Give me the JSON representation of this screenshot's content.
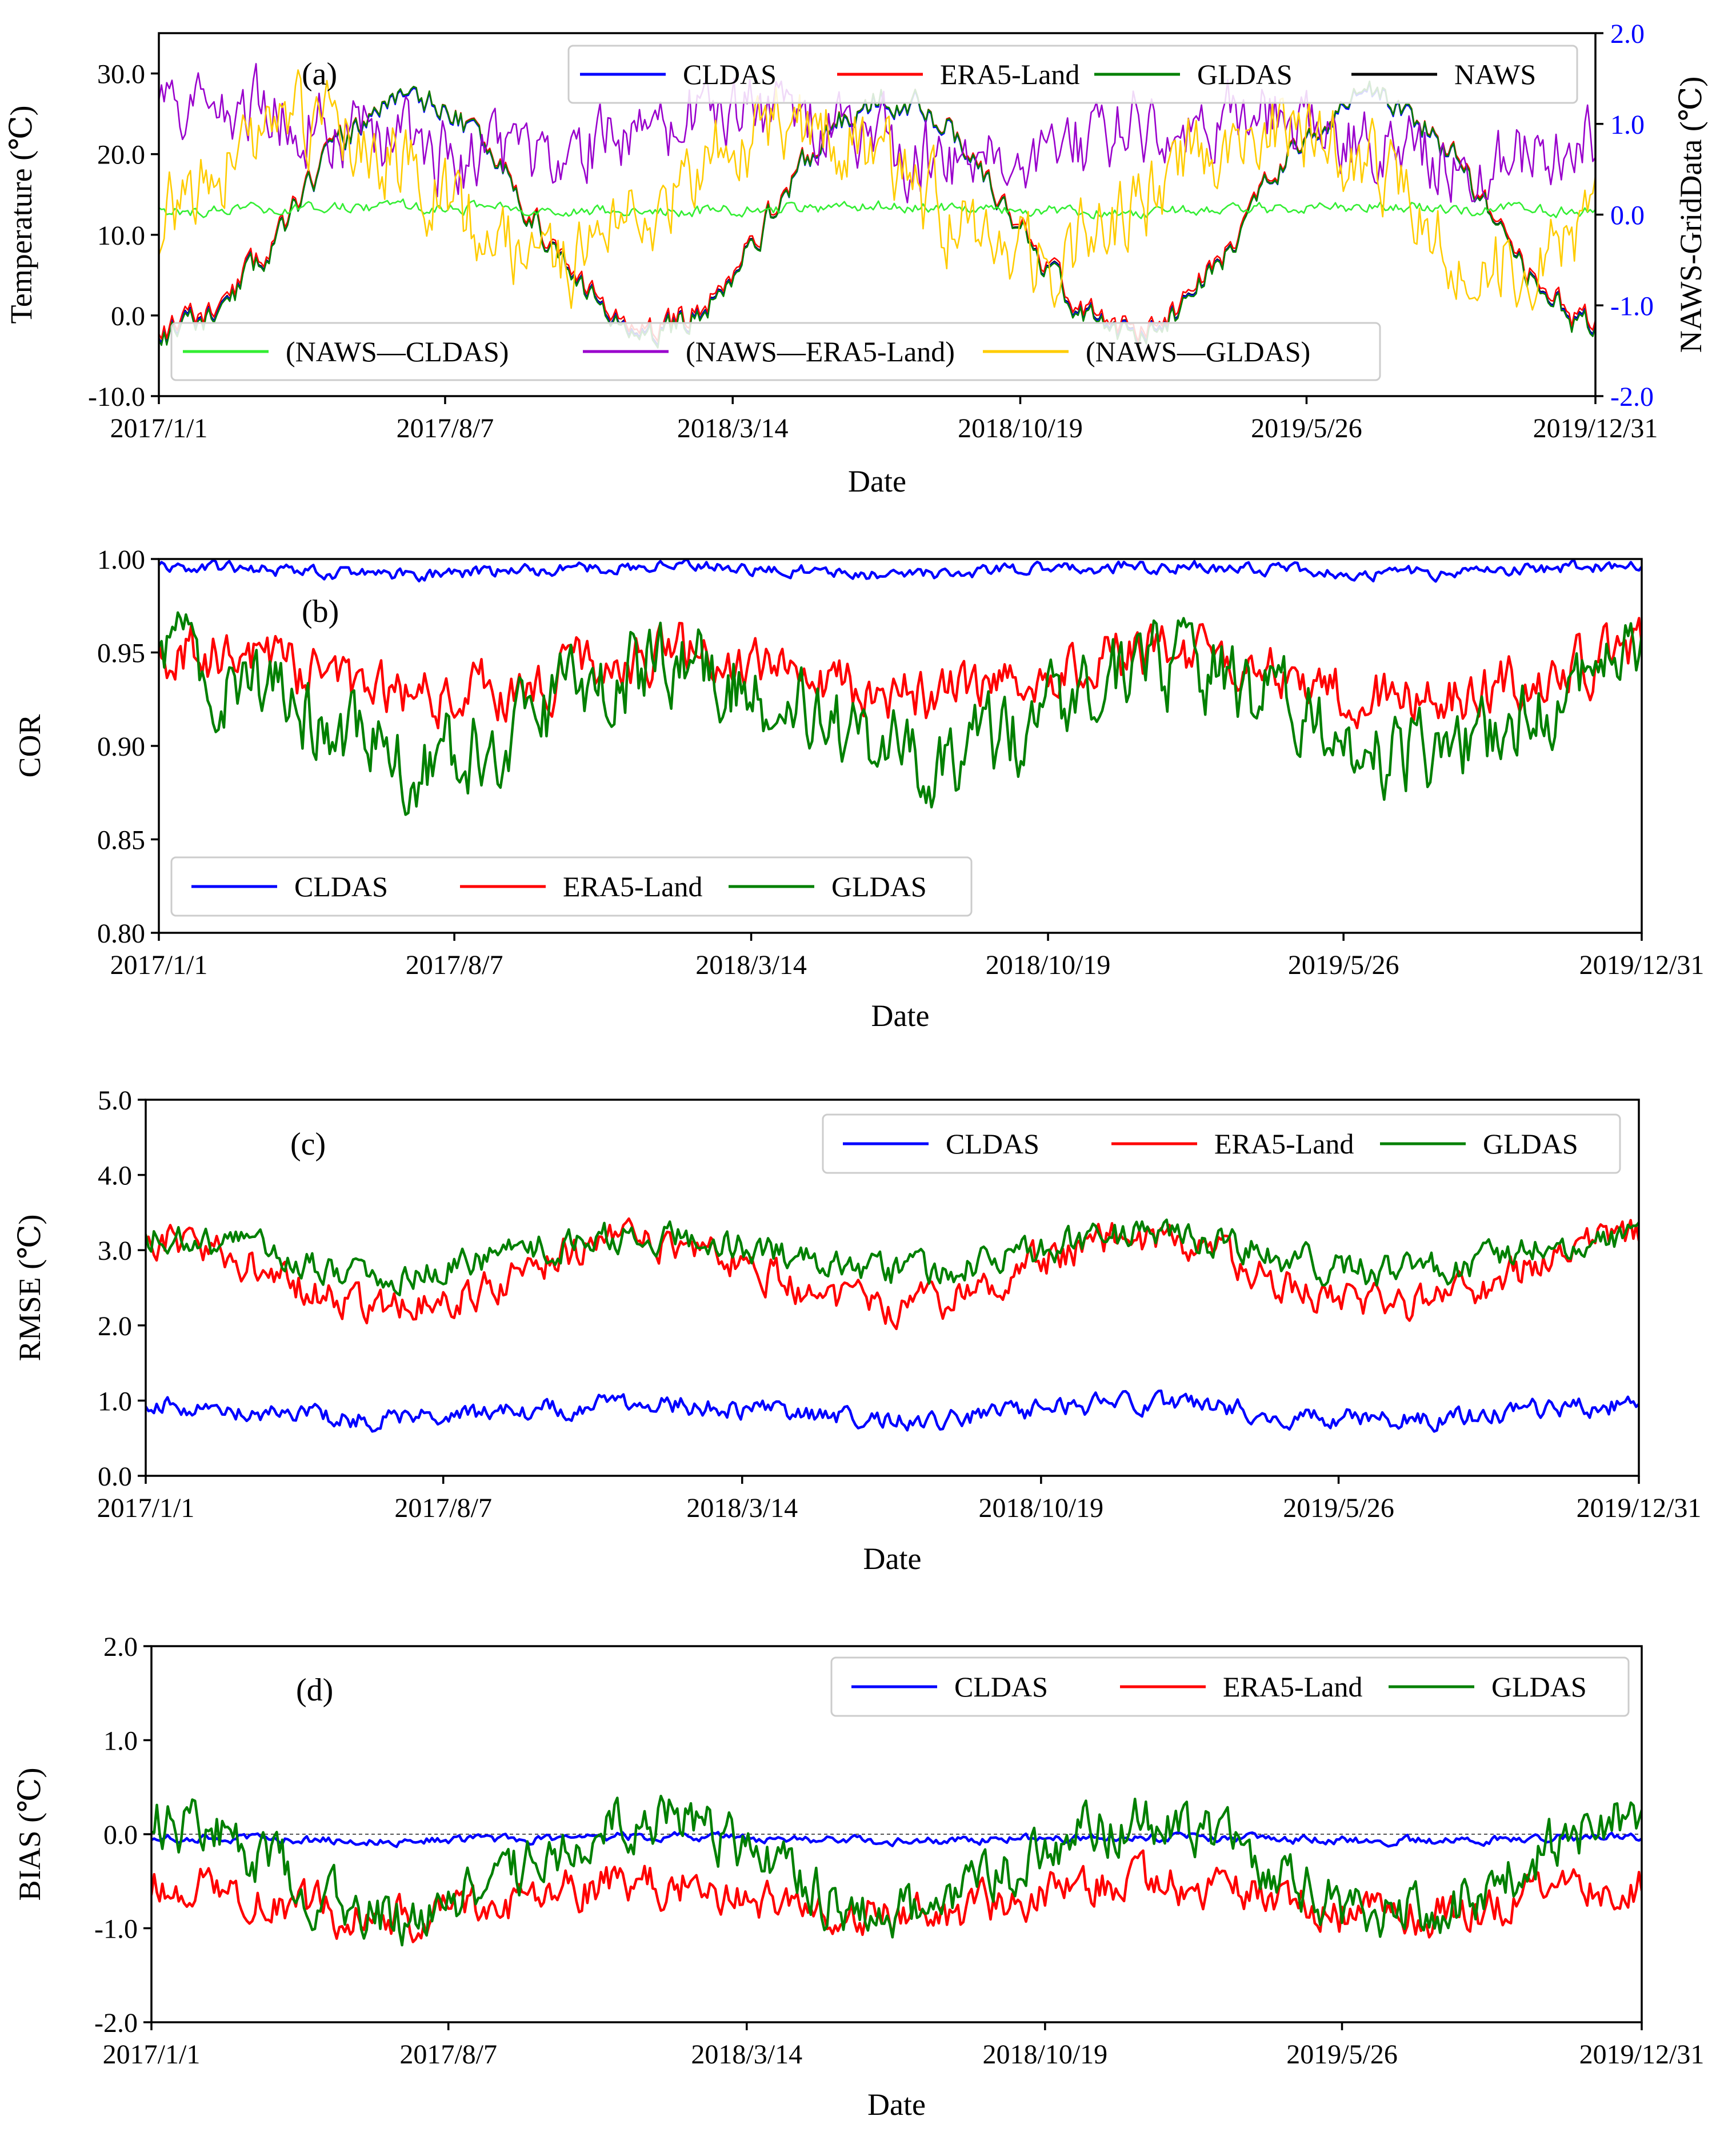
{
  "colors": {
    "CLDAS": "#0000ff",
    "ERA5-Land": "#ff0000",
    "GLDAS": "#008000",
    "NAWS": "#000000",
    "diff_CLDAS": "#33ee33",
    "diff_ERA5": "#9900cc",
    "diff_GLDAS": "#ffcc00",
    "right_axis": "#0000ff"
  },
  "chart_data": [
    {
      "id": "a",
      "type": "line",
      "panel_label": "(a)",
      "xlabel": "Date",
      "ylabel": "Temperature (℃)",
      "y2label": "NAWS-GridData (℃)",
      "x_range": [
        0,
        1094
      ],
      "x_ticks": [
        {
          "day": 0,
          "label": "2017/1/1"
        },
        {
          "day": 218,
          "label": "2017/8/7"
        },
        {
          "day": 437,
          "label": "2018/3/14"
        },
        {
          "day": 656,
          "label": "2018/10/19"
        },
        {
          "day": 874,
          "label": "2019/5/26"
        },
        {
          "day": 1094,
          "label": "2019/12/31"
        }
      ],
      "ylim": [
        -10,
        35
      ],
      "y_ticks": [
        {
          "value": -10,
          "label": "-10.0"
        },
        {
          "value": 0,
          "label": "0.0"
        },
        {
          "value": 10,
          "label": "10.0"
        },
        {
          "value": 20,
          "label": "20.0"
        },
        {
          "value": 30,
          "label": "30.0"
        }
      ],
      "y2lim": [
        -2,
        2
      ],
      "y2_ticks": [
        {
          "value": -2,
          "label": "-2.0"
        },
        {
          "value": -1,
          "label": "-1.0"
        },
        {
          "value": 0,
          "label": "0.0"
        },
        {
          "value": 1,
          "label": "1.0"
        },
        {
          "value": 2,
          "label": "2.0"
        }
      ],
      "legend_top": [
        "CLDAS",
        "ERA5-Land",
        "GLDAS",
        "NAWS"
      ],
      "legend_bottom": [
        "(NAWS—CLDAS)",
        "(NAWS—ERA5-Land)",
        "(NAWS—GLDAS)"
      ],
      "series": [
        {
          "name": "NAWS",
          "axis": "left",
          "approx": true,
          "mean": 12.5,
          "amp": 14.5,
          "peak_day": 192,
          "noise": 1.4,
          "seed": 11
        },
        {
          "name": "CLDAS",
          "axis": "left",
          "approx": true,
          "mean": 12.4,
          "amp": 14.5,
          "peak_day": 192,
          "noise": 1.4,
          "seed": 11
        },
        {
          "name": "ERA5-Land",
          "axis": "left",
          "approx": true,
          "mean": 12.8,
          "amp": 14.3,
          "peak_day": 192,
          "noise": 1.4,
          "seed": 11
        },
        {
          "name": "GLDAS",
          "axis": "left",
          "approx": true,
          "mean": 12.4,
          "amp": 14.7,
          "peak_day": 192,
          "noise": 1.4,
          "seed": 11
        },
        {
          "name": "(NAWS—CLDAS)",
          "axis": "right",
          "approx": true,
          "mean": 0.06,
          "amp": 0.03,
          "peak_day": 192,
          "noise": 0.05,
          "seed": 21
        },
        {
          "name": "(NAWS—ERA5-Land)",
          "axis": "right",
          "approx": true,
          "mean": 0.85,
          "amp": 0.25,
          "peak_day": 75,
          "noise": 0.32,
          "seed": 22
        },
        {
          "name": "(NAWS—GLDAS)",
          "axis": "right",
          "approx": true,
          "mean": 0.25,
          "amp": 0.75,
          "peak_day": 120,
          "noise": 0.35,
          "seed": 23
        }
      ]
    },
    {
      "id": "b",
      "type": "line",
      "panel_label": "(b)",
      "xlabel": "Date",
      "ylabel": "COR",
      "x_range": [
        0,
        1094
      ],
      "x_ticks": [
        {
          "day": 0,
          "label": "2017/1/1"
        },
        {
          "day": 218,
          "label": "2017/8/7"
        },
        {
          "day": 437,
          "label": "2018/3/14"
        },
        {
          "day": 656,
          "label": "2018/10/19"
        },
        {
          "day": 874,
          "label": "2019/5/26"
        },
        {
          "day": 1094,
          "label": "2019/12/31"
        }
      ],
      "ylim": [
        0.8,
        1.0
      ],
      "y_ticks": [
        {
          "value": 0.8,
          "label": "0.80"
        },
        {
          "value": 0.85,
          "label": "0.85"
        },
        {
          "value": 0.9,
          "label": "0.90"
        },
        {
          "value": 0.95,
          "label": "0.95"
        },
        {
          "value": 1.0,
          "label": "1.00"
        }
      ],
      "legend": [
        "CLDAS",
        "ERA5-Land",
        "GLDAS"
      ],
      "series": [
        {
          "name": "CLDAS",
          "approx": true,
          "mean": 0.994,
          "amp": 0.002,
          "peak_day": 0,
          "noise": 0.0025,
          "seed": 31
        },
        {
          "name": "ERA5-Land",
          "approx": true,
          "mean": 0.938,
          "amp": 0.012,
          "peak_day": 15,
          "noise": 0.011,
          "seed": 32
        },
        {
          "name": "GLDAS",
          "approx": true,
          "mean": 0.918,
          "amp": 0.025,
          "peak_day": 15,
          "noise": 0.017,
          "seed": 33
        }
      ]
    },
    {
      "id": "c",
      "type": "line",
      "panel_label": "(c)",
      "xlabel": "Date",
      "ylabel": "RMSE (℃)",
      "x_range": [
        0,
        1094
      ],
      "x_ticks": [
        {
          "day": 0,
          "label": "2017/1/1"
        },
        {
          "day": 218,
          "label": "2017/8/7"
        },
        {
          "day": 437,
          "label": "2018/3/14"
        },
        {
          "day": 656,
          "label": "2018/10/19"
        },
        {
          "day": 874,
          "label": "2019/5/26"
        },
        {
          "day": 1094,
          "label": "2019/12/31"
        }
      ],
      "ylim": [
        0,
        5
      ],
      "y_ticks": [
        {
          "value": 0,
          "label": "0.0"
        },
        {
          "value": 1,
          "label": "1.0"
        },
        {
          "value": 2,
          "label": "2.0"
        },
        {
          "value": 3,
          "label": "3.0"
        },
        {
          "value": 4,
          "label": "4.0"
        },
        {
          "value": 5,
          "label": "5.0"
        }
      ],
      "legend": [
        "CLDAS",
        "ERA5-Land",
        "GLDAS"
      ],
      "series": [
        {
          "name": "CLDAS",
          "approx": true,
          "mean": 0.85,
          "amp": 0.1,
          "peak_day": 0,
          "noise": 0.1,
          "seed": 41
        },
        {
          "name": "ERA5-Land",
          "approx": true,
          "mean": 2.7,
          "amp": 0.45,
          "peak_day": 0,
          "noise": 0.18,
          "seed": 42
        },
        {
          "name": "GLDAS",
          "approx": true,
          "mean": 2.95,
          "amp": 0.25,
          "peak_day": 0,
          "noise": 0.16,
          "seed": 43
        }
      ]
    },
    {
      "id": "d",
      "type": "line",
      "panel_label": "(d)",
      "xlabel": "Date",
      "ylabel": "BIAS (℃)",
      "x_range": [
        0,
        1094
      ],
      "x_ticks": [
        {
          "day": 0,
          "label": "2017/1/1"
        },
        {
          "day": 218,
          "label": "2017/8/7"
        },
        {
          "day": 437,
          "label": "2018/3/14"
        },
        {
          "day": 656,
          "label": "2018/10/19"
        },
        {
          "day": 874,
          "label": "2019/5/26"
        },
        {
          "day": 1094,
          "label": "2019/12/31"
        }
      ],
      "ylim": [
        -2,
        2
      ],
      "y_ticks": [
        {
          "value": -2,
          "label": "-2.0"
        },
        {
          "value": -1,
          "label": "-1.0"
        },
        {
          "value": 0,
          "label": "0.0"
        },
        {
          "value": 1,
          "label": "1.0"
        },
        {
          "value": 2,
          "label": "2.0"
        }
      ],
      "reference_line": 0,
      "legend": [
        "CLDAS",
        "ERA5-Land",
        "GLDAS"
      ],
      "series": [
        {
          "name": "CLDAS",
          "approx": true,
          "mean": -0.05,
          "amp": 0.02,
          "peak_day": 0,
          "noise": 0.035,
          "seed": 51
        },
        {
          "name": "ERA5-Land",
          "approx": true,
          "mean": -0.7,
          "amp": 0.18,
          "peak_day": 0,
          "noise": 0.17,
          "seed": 52
        },
        {
          "name": "GLDAS",
          "approx": true,
          "mean": -0.35,
          "amp": 0.5,
          "peak_day": 0,
          "noise": 0.22,
          "seed": 53
        }
      ]
    }
  ]
}
